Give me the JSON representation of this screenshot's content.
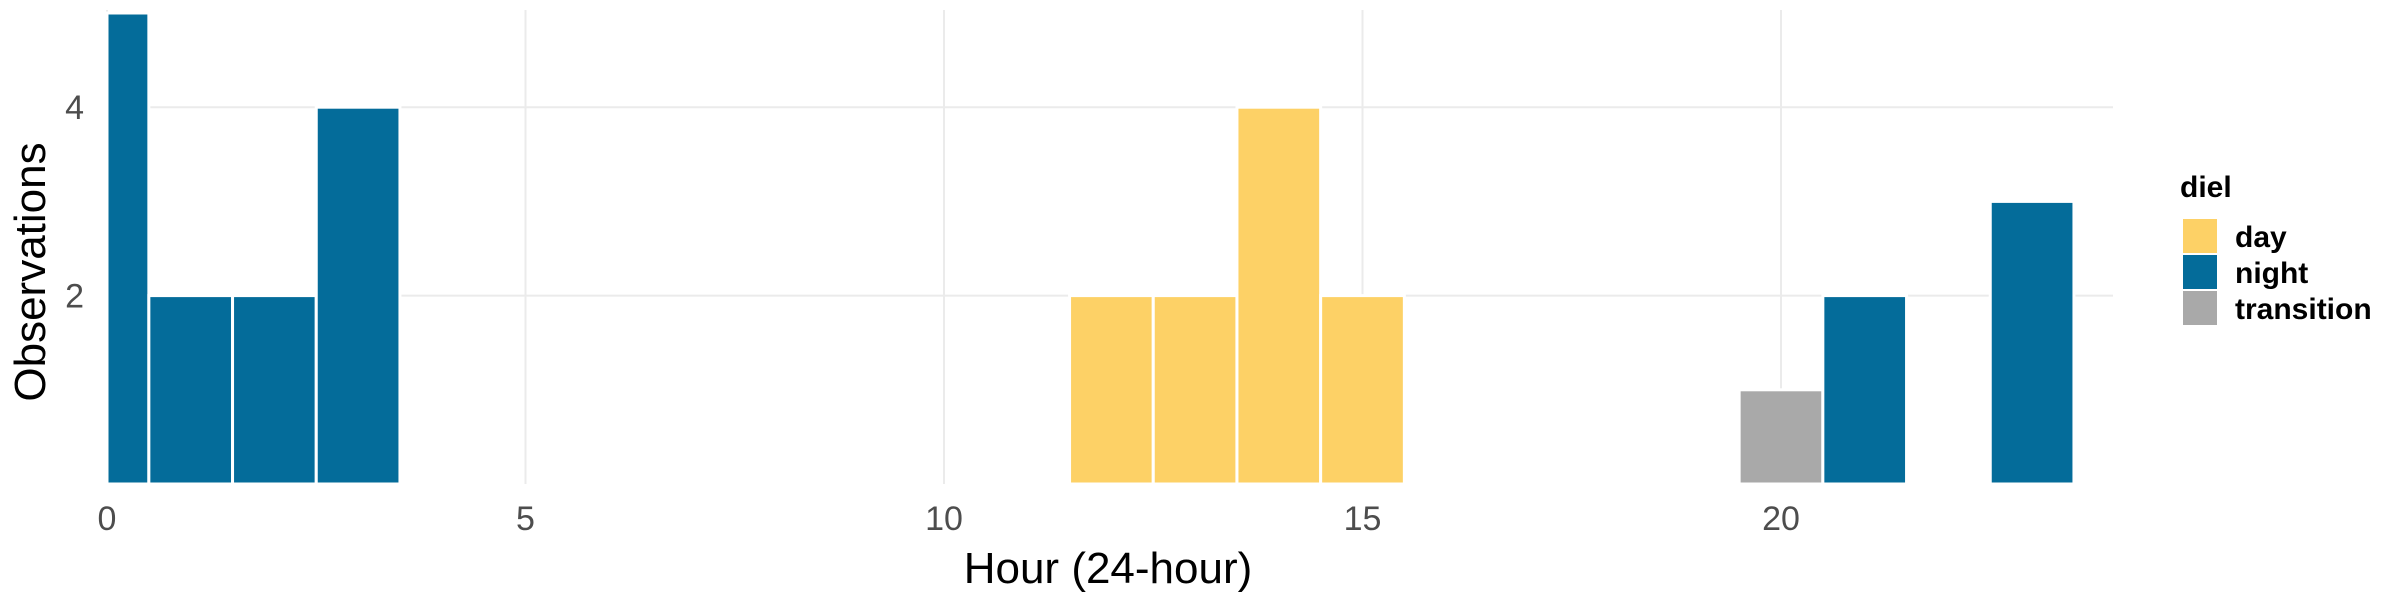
{
  "chart_data": {
    "type": "bar",
    "xlabel": "Hour (24-hour)",
    "ylabel": "Observations",
    "xlim": [
      0,
      24
    ],
    "ylim": [
      0,
      5
    ],
    "x_ticks": [
      0,
      5,
      10,
      15,
      20
    ],
    "y_ticks": [
      2,
      4
    ],
    "grid": true,
    "legend": {
      "title": "diel",
      "position": "right",
      "entries": [
        {
          "name": "day",
          "color": "#FDD166"
        },
        {
          "name": "night",
          "color": "#046C9A"
        },
        {
          "name": "transition",
          "color": "#A9A9A9"
        }
      ]
    },
    "bin_width": 1,
    "bars": [
      {
        "x": 0,
        "value": 5,
        "series": "night"
      },
      {
        "x": 1,
        "value": 2,
        "series": "night"
      },
      {
        "x": 2,
        "value": 2,
        "series": "night"
      },
      {
        "x": 3,
        "value": 4,
        "series": "night"
      },
      {
        "x": 12,
        "value": 2,
        "series": "day"
      },
      {
        "x": 13,
        "value": 2,
        "series": "day"
      },
      {
        "x": 14,
        "value": 4,
        "series": "day"
      },
      {
        "x": 15,
        "value": 2,
        "series": "day"
      },
      {
        "x": 20,
        "value": 1,
        "series": "transition"
      },
      {
        "x": 21,
        "value": 2,
        "series": "night"
      },
      {
        "x": 23,
        "value": 3,
        "series": "night"
      }
    ]
  }
}
